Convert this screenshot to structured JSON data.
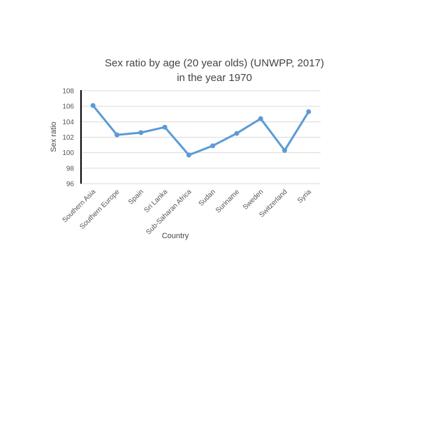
{
  "chart_data": {
    "type": "line",
    "title_line1": "Sex ratio by age (20 year olds) (UNWPP, 2017)",
    "title_line2": "in the year 1970",
    "xlabel": "Country",
    "ylabel": "Sex ratio",
    "ylim": [
      96,
      108
    ],
    "y_ticks": [
      96,
      98,
      100,
      102,
      104,
      106,
      108
    ],
    "grid": true,
    "categories": [
      "Southern Asia",
      "Southern Europe",
      "Spain",
      "Sri Lanka",
      "Sub-Saharan Africa",
      "Sudan",
      "Suriname",
      "Sweden",
      "Switzerland",
      "Syria"
    ],
    "series": [
      {
        "values": [
          106.1,
          102.3,
          102.6,
          103.3,
          99.7,
          100.9,
          102.5,
          104.4,
          100.3,
          105.3
        ],
        "color": "#5b9bd5"
      }
    ]
  }
}
